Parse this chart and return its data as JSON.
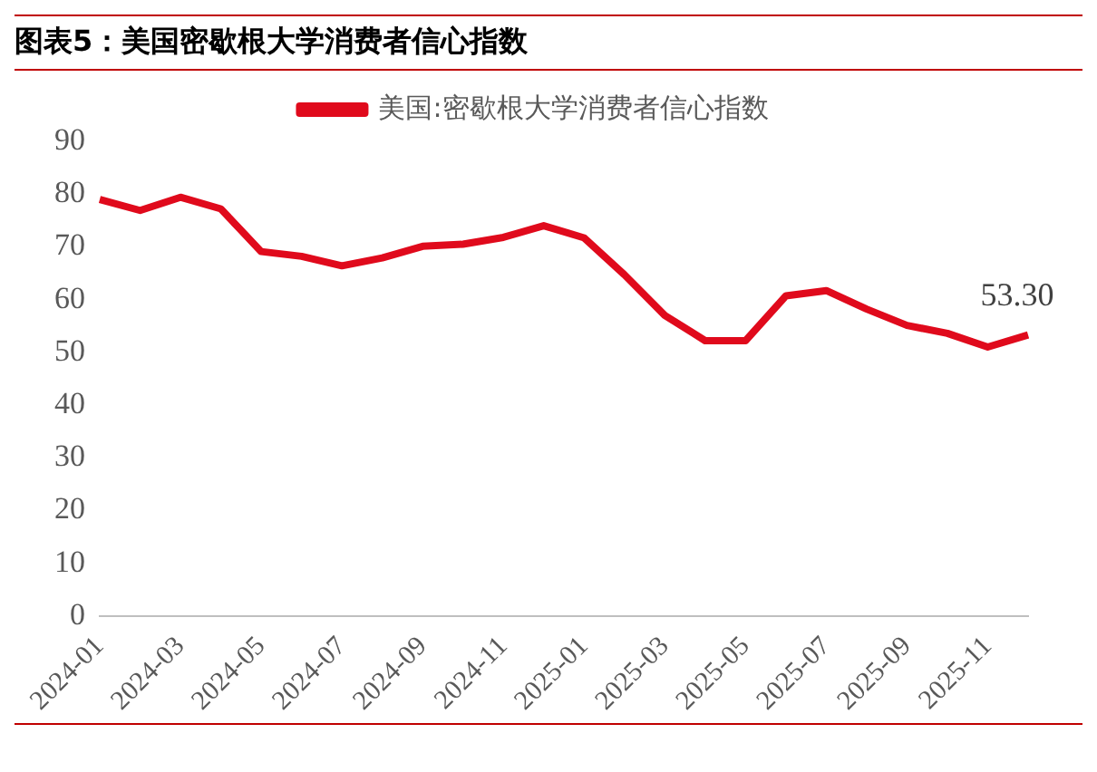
{
  "chart_data": {
    "type": "line",
    "title": "图表5：美国密歇根大学消费者信心指数",
    "categories": [
      "2024-01",
      null,
      "2024-03",
      null,
      "2024-05",
      null,
      "2024-07",
      null,
      "2024-09",
      null,
      "2024-11",
      null,
      "2025-01",
      null,
      "2025-03",
      null,
      "2025-05",
      null,
      "2025-07",
      null,
      "2025-09",
      null,
      "2025-11",
      null
    ],
    "series": [
      {
        "name": "美国:密歇根大学消费者信心指数",
        "color": "#e00a1c",
        "values": [
          79.0,
          76.9,
          79.4,
          77.2,
          69.1,
          68.2,
          66.4,
          67.9,
          70.1,
          70.5,
          71.8,
          74.0,
          71.7,
          64.7,
          57.0,
          52.2,
          52.2,
          60.7,
          61.7,
          58.2,
          55.1,
          53.6,
          51.0,
          53.3
        ],
        "value_labels": [
          null,
          null,
          null,
          null,
          null,
          null,
          null,
          null,
          null,
          null,
          null,
          null,
          null,
          null,
          null,
          null,
          null,
          null,
          null,
          null,
          null,
          null,
          null,
          "53.30"
        ]
      }
    ],
    "ylim": [
      0,
      90
    ],
    "yticks": [
      0,
      10,
      20,
      30,
      40,
      50,
      60,
      70,
      80,
      90
    ],
    "grid": false,
    "legend": "top",
    "marker": "none",
    "line_style": "solid"
  }
}
